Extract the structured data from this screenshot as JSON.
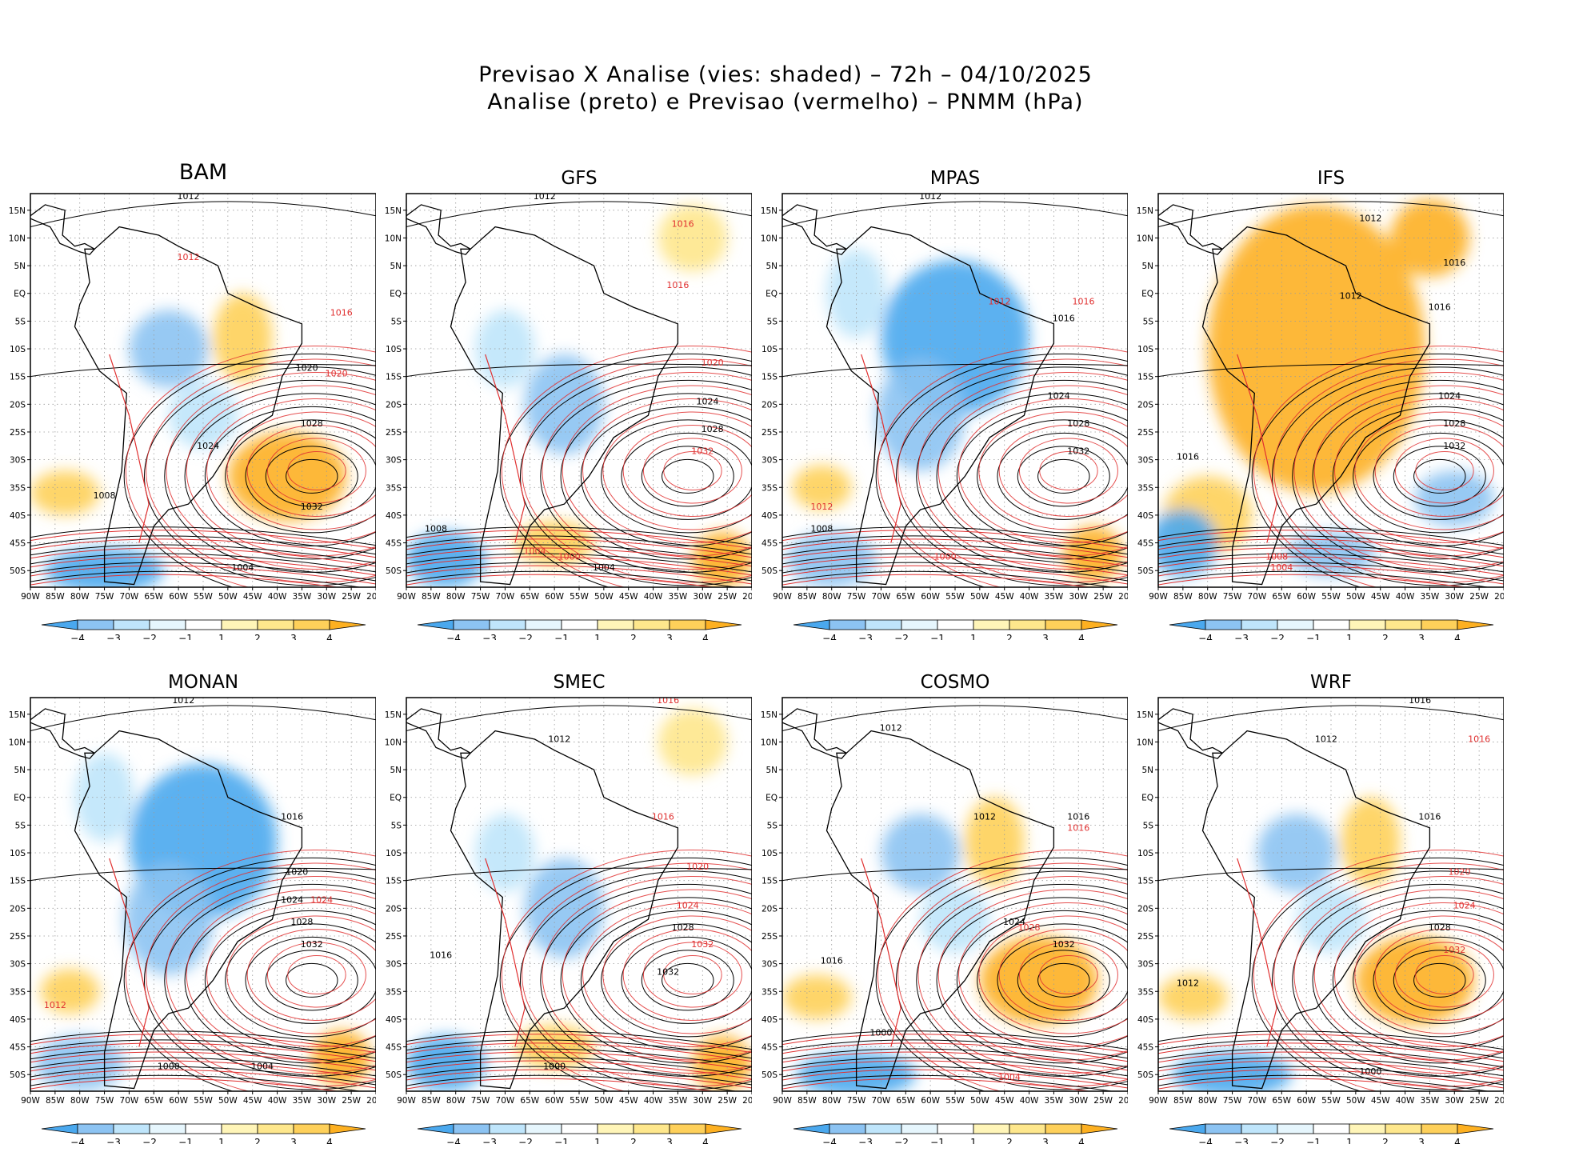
{
  "figure": {
    "title_line1": "Previsao X Analise (vies: shaded) – 72h – 04/10/2025",
    "title_line2": "Analise (preto) e Previsao (vermelho) – PNMM (hPa)"
  },
  "colors": {
    "neg4": "#4aa8ee",
    "neg3": "#8cc3f2",
    "neg2": "#bfe5fb",
    "neg1": "#e6f6fd",
    "pos1": "#fff5b8",
    "pos2": "#fee78c",
    "pos3": "#fed05a",
    "pos4": "#fdb021",
    "analysis": "#000000",
    "forecast": "#e03030",
    "grid": "#9a9a9a"
  },
  "axes": {
    "lat_ticks": [
      "15N",
      "10N",
      "5N",
      "EQ",
      "5S",
      "10S",
      "15S",
      "20S",
      "25S",
      "30S",
      "35S",
      "40S",
      "45S",
      "50S"
    ],
    "lon_ticks": [
      "90W",
      "85W",
      "80W",
      "75W",
      "70W",
      "65W",
      "60W",
      "55W",
      "50W",
      "45W",
      "40W",
      "35W",
      "30W",
      "25W",
      "20W"
    ]
  },
  "colorbar": {
    "labels": [
      "−4",
      "−3",
      "−2",
      "−1",
      "1",
      "2",
      "3",
      "4"
    ]
  },
  "panels": [
    {
      "name": "BAM",
      "bias": "mixed",
      "isobars": [
        {
          "text": "1012",
          "lon": -58,
          "lat": 17,
          "c": "a"
        },
        {
          "text": "1012",
          "lon": -58,
          "lat": 6,
          "c": "f"
        },
        {
          "text": "1016",
          "lon": -27,
          "lat": -4,
          "c": "f"
        },
        {
          "text": "1020",
          "lon": -34,
          "lat": -14,
          "c": "a"
        },
        {
          "text": "1020",
          "lon": -28,
          "lat": -15,
          "c": "f"
        },
        {
          "text": "1028",
          "lon": -33,
          "lat": -24,
          "c": "a"
        },
        {
          "text": "1032",
          "lon": -33,
          "lat": -39,
          "c": "a"
        },
        {
          "text": "1008",
          "lon": -75,
          "lat": -37,
          "c": "a"
        },
        {
          "text": "1004",
          "lon": -47,
          "lat": -50,
          "c": "a"
        },
        {
          "text": "1024",
          "lon": -54,
          "lat": -28,
          "c": "a"
        }
      ]
    },
    {
      "name": "GFS",
      "bias": "light",
      "isobars": [
        {
          "text": "1012",
          "lon": -62,
          "lat": 17,
          "c": "a"
        },
        {
          "text": "1016",
          "lon": -34,
          "lat": 12,
          "c": "f"
        },
        {
          "text": "1016",
          "lon": -35,
          "lat": 1,
          "c": "f"
        },
        {
          "text": "1020",
          "lon": -28,
          "lat": -13,
          "c": "f"
        },
        {
          "text": "1024",
          "lon": -29,
          "lat": -20,
          "c": "a"
        },
        {
          "text": "1028",
          "lon": -28,
          "lat": -25,
          "c": "a"
        },
        {
          "text": "1032",
          "lon": -30,
          "lat": -29,
          "c": "f"
        },
        {
          "text": "1008",
          "lon": -84,
          "lat": -43,
          "c": "a"
        },
        {
          "text": "1004",
          "lon": -64,
          "lat": -47,
          "c": "f"
        },
        {
          "text": "1004",
          "lon": -50,
          "lat": -50,
          "c": "a"
        },
        {
          "text": "1000",
          "lon": -57,
          "lat": -48,
          "c": "f"
        }
      ]
    },
    {
      "name": "MPAS",
      "bias": "cool",
      "isobars": [
        {
          "text": "1012",
          "lon": -60,
          "lat": 17,
          "c": "a"
        },
        {
          "text": "1012",
          "lon": -46,
          "lat": -2,
          "c": "f"
        },
        {
          "text": "1016",
          "lon": -33,
          "lat": -5,
          "c": "a"
        },
        {
          "text": "1016",
          "lon": -29,
          "lat": -2,
          "c": "f"
        },
        {
          "text": "1024",
          "lon": -34,
          "lat": -19,
          "c": "a"
        },
        {
          "text": "1028",
          "lon": -30,
          "lat": -24,
          "c": "a"
        },
        {
          "text": "1032",
          "lon": -30,
          "lat": -29,
          "c": "a"
        },
        {
          "text": "1008",
          "lon": -82,
          "lat": -43,
          "c": "a"
        },
        {
          "text": "1000",
          "lon": -57,
          "lat": -48,
          "c": "f"
        },
        {
          "text": "1012",
          "lon": -82,
          "lat": -39,
          "c": "f"
        }
      ]
    },
    {
      "name": "IFS",
      "bias": "warm",
      "isobars": [
        {
          "text": "1012",
          "lon": -47,
          "lat": 13,
          "c": "a"
        },
        {
          "text": "1016",
          "lon": -30,
          "lat": 5,
          "c": "a"
        },
        {
          "text": "1016",
          "lon": -33,
          "lat": -3,
          "c": "a"
        },
        {
          "text": "1012",
          "lon": -51,
          "lat": -1,
          "c": "a"
        },
        {
          "text": "1024",
          "lon": -31,
          "lat": -19,
          "c": "a"
        },
        {
          "text": "1028",
          "lon": -30,
          "lat": -24,
          "c": "a"
        },
        {
          "text": "1032",
          "lon": -30,
          "lat": -28,
          "c": "a"
        },
        {
          "text": "1016",
          "lon": -84,
          "lat": -30,
          "c": "a"
        },
        {
          "text": "1004",
          "lon": -65,
          "lat": -50,
          "c": "f"
        },
        {
          "text": "1008",
          "lon": -66,
          "lat": -48,
          "c": "f"
        }
      ]
    },
    {
      "name": "MONAN",
      "bias": "cool",
      "isobars": [
        {
          "text": "1012",
          "lon": -59,
          "lat": 17,
          "c": "a"
        },
        {
          "text": "1016",
          "lon": -37,
          "lat": -4,
          "c": "a"
        },
        {
          "text": "1020",
          "lon": -36,
          "lat": -14,
          "c": "a"
        },
        {
          "text": "1024",
          "lon": -37,
          "lat": -19,
          "c": "a"
        },
        {
          "text": "1024",
          "lon": -31,
          "lat": -19,
          "c": "f"
        },
        {
          "text": "1028",
          "lon": -35,
          "lat": -23,
          "c": "a"
        },
        {
          "text": "1032",
          "lon": -33,
          "lat": -27,
          "c": "a"
        },
        {
          "text": "1012",
          "lon": -85,
          "lat": -38,
          "c": "f"
        },
        {
          "text": "1004",
          "lon": -43,
          "lat": -49,
          "c": "a"
        },
        {
          "text": "1000",
          "lon": -62,
          "lat": -49,
          "c": "a"
        }
      ]
    },
    {
      "name": "SMEC",
      "bias": "light",
      "isobars": [
        {
          "text": "1016",
          "lon": -37,
          "lat": 17,
          "c": "f"
        },
        {
          "text": "1012",
          "lon": -59,
          "lat": 10,
          "c": "a"
        },
        {
          "text": "1016",
          "lon": -38,
          "lat": -4,
          "c": "f"
        },
        {
          "text": "1020",
          "lon": -31,
          "lat": -13,
          "c": "f"
        },
        {
          "text": "1024",
          "lon": -33,
          "lat": -20,
          "c": "f"
        },
        {
          "text": "1028",
          "lon": -34,
          "lat": -24,
          "c": "a"
        },
        {
          "text": "1032",
          "lon": -30,
          "lat": -27,
          "c": "f"
        },
        {
          "text": "1032",
          "lon": -37,
          "lat": -32,
          "c": "a"
        },
        {
          "text": "1016",
          "lon": -83,
          "lat": -29,
          "c": "a"
        },
        {
          "text": "1000",
          "lon": -60,
          "lat": -49,
          "c": "a"
        }
      ]
    },
    {
      "name": "COSMO",
      "bias": "mixed",
      "isobars": [
        {
          "text": "1012",
          "lon": -68,
          "lat": 12,
          "c": "a"
        },
        {
          "text": "1012",
          "lon": -49,
          "lat": -4,
          "c": "a"
        },
        {
          "text": "1016",
          "lon": -30,
          "lat": -4,
          "c": "a"
        },
        {
          "text": "1016",
          "lon": -30,
          "lat": -6,
          "c": "f"
        },
        {
          "text": "1024",
          "lon": -43,
          "lat": -23,
          "c": "a"
        },
        {
          "text": "1028",
          "lon": -40,
          "lat": -24,
          "c": "f"
        },
        {
          "text": "1032",
          "lon": -33,
          "lat": -27,
          "c": "a"
        },
        {
          "text": "1016",
          "lon": -80,
          "lat": -30,
          "c": "a"
        },
        {
          "text": "1004",
          "lon": -44,
          "lat": -51,
          "c": "f"
        },
        {
          "text": "1000",
          "lon": -70,
          "lat": -43,
          "c": "a"
        }
      ]
    },
    {
      "name": "WRF",
      "bias": "mixed",
      "isobars": [
        {
          "text": "1016",
          "lon": -37,
          "lat": 17,
          "c": "a"
        },
        {
          "text": "1016",
          "lon": -25,
          "lat": 10,
          "c": "f"
        },
        {
          "text": "1012",
          "lon": -56,
          "lat": 10,
          "c": "a"
        },
        {
          "text": "1016",
          "lon": -35,
          "lat": -4,
          "c": "a"
        },
        {
          "text": "1020",
          "lon": -29,
          "lat": -14,
          "c": "f"
        },
        {
          "text": "1024",
          "lon": -28,
          "lat": -20,
          "c": "f"
        },
        {
          "text": "1028",
          "lon": -33,
          "lat": -24,
          "c": "a"
        },
        {
          "text": "1032",
          "lon": -30,
          "lat": -28,
          "c": "f"
        },
        {
          "text": "1012",
          "lon": -84,
          "lat": -34,
          "c": "a"
        },
        {
          "text": "1000",
          "lon": -47,
          "lat": -50,
          "c": "a"
        }
      ]
    }
  ]
}
